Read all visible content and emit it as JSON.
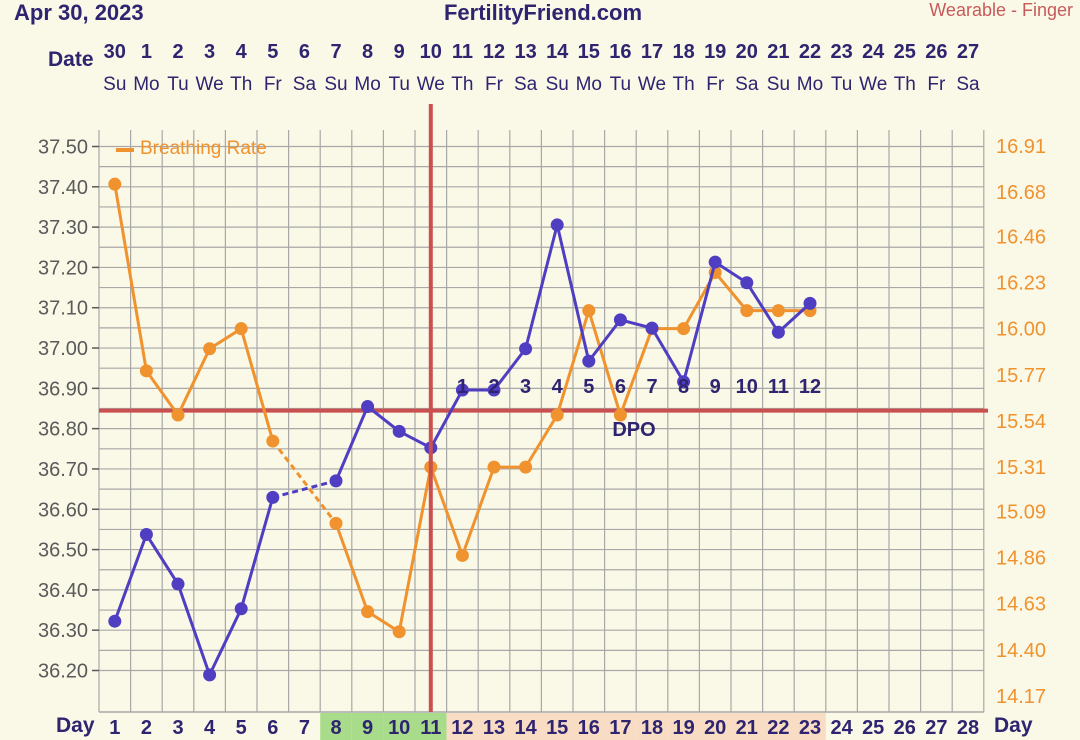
{
  "header": {
    "date": "Apr 30, 2023",
    "site": "FertilityFriend.com",
    "source": "Wearable - Finger"
  },
  "labels": {
    "date_row": "Date",
    "day_row": "Day",
    "dpo": "DPO"
  },
  "colors": {
    "background": "#faf8e6",
    "grid": "#a8a8a8",
    "temp_line": "#4f3ec2",
    "breathing_line": "#f0922e",
    "ovulation_line": "#c9504f",
    "left_axis_text": "#5a5a5a",
    "header_text": "#2e2470",
    "source_text": "#c75a5a",
    "fertile_green": "#a9dc8a",
    "luteal_peach": "#f8dcc4"
  },
  "chart_data": {
    "type": "line",
    "title": "",
    "x": [
      1,
      2,
      3,
      4,
      5,
      6,
      7,
      8,
      9,
      10,
      11,
      12,
      13,
      14,
      15,
      16,
      17,
      18,
      19,
      20,
      21,
      22,
      23,
      24,
      25,
      26,
      27,
      28
    ],
    "dates": [
      "30",
      "1",
      "2",
      "3",
      "4",
      "5",
      "6",
      "7",
      "8",
      "9",
      "10",
      "11",
      "12",
      "13",
      "14",
      "15",
      "16",
      "17",
      "18",
      "19",
      "20",
      "21",
      "22",
      "23",
      "24",
      "25",
      "26",
      "27"
    ],
    "weekdays": [
      "Su",
      "Mo",
      "Tu",
      "We",
      "Th",
      "Fr",
      "Sa",
      "Su",
      "Mo",
      "Tu",
      "We",
      "Th",
      "Fr",
      "Sa",
      "Su",
      "Mo",
      "Tu",
      "We",
      "Th",
      "Fr",
      "Sa",
      "Su",
      "Mo",
      "Tu",
      "We",
      "Th",
      "Fr",
      "Sa"
    ],
    "day_highlight": [
      "none",
      "none",
      "none",
      "none",
      "none",
      "none",
      "none",
      "green",
      "green",
      "green",
      "green",
      "peach",
      "peach",
      "peach",
      "peach",
      "peach",
      "peach",
      "peach",
      "peach",
      "peach",
      "peach",
      "peach",
      "peach",
      "none",
      "none",
      "none",
      "none",
      "none"
    ],
    "y_left_ticks": [
      "37.50",
      "37.40",
      "37.30",
      "37.20",
      "37.10",
      "37.00",
      "36.90",
      "36.80",
      "36.70",
      "36.60",
      "36.50",
      "36.40",
      "36.30",
      "36.20"
    ],
    "ylim_left": [
      36.13,
      37.54
    ],
    "y_right_ticks": [
      "16.91",
      "16.68",
      "16.46",
      "16.23",
      "16.00",
      "15.77",
      "15.54",
      "15.31",
      "15.09",
      "14.86",
      "14.63",
      "14.40",
      "14.17"
    ],
    "ylim_right": [
      14.09,
      16.99
    ],
    "series": [
      {
        "name": "Temperature",
        "axis": "left",
        "points": [
          {
            "day": 1,
            "value": 36.35
          },
          {
            "day": 2,
            "value": 36.56
          },
          {
            "day": 3,
            "value": 36.44
          },
          {
            "day": 4,
            "value": 36.22
          },
          {
            "day": 5,
            "value": 36.38
          },
          {
            "day": 6,
            "value": 36.65
          },
          {
            "day": 8,
            "value": 36.69
          },
          {
            "day": 9,
            "value": 36.87
          },
          {
            "day": 10,
            "value": 36.81
          },
          {
            "day": 11,
            "value": 36.77
          },
          {
            "day": 12,
            "value": 36.91
          },
          {
            "day": 13,
            "value": 36.91
          },
          {
            "day": 14,
            "value": 37.01
          },
          {
            "day": 15,
            "value": 37.31
          },
          {
            "day": 16,
            "value": 36.98
          },
          {
            "day": 17,
            "value": 37.08
          },
          {
            "day": 18,
            "value": 37.06
          },
          {
            "day": 19,
            "value": 36.93
          },
          {
            "day": 20,
            "value": 37.22
          },
          {
            "day": 21,
            "value": 37.17
          },
          {
            "day": 22,
            "value": 37.05
          },
          {
            "day": 23,
            "value": 37.12
          }
        ]
      },
      {
        "name": "Breathing Rate",
        "axis": "right",
        "points": [
          {
            "day": 1,
            "value": 16.72
          },
          {
            "day": 2,
            "value": 15.79
          },
          {
            "day": 3,
            "value": 15.57
          },
          {
            "day": 4,
            "value": 15.9
          },
          {
            "day": 5,
            "value": 16.0
          },
          {
            "day": 6,
            "value": 15.44
          },
          {
            "day": 8,
            "value": 15.03
          },
          {
            "day": 9,
            "value": 14.59
          },
          {
            "day": 10,
            "value": 14.49
          },
          {
            "day": 11,
            "value": 15.31
          },
          {
            "day": 12,
            "value": 14.87
          },
          {
            "day": 13,
            "value": 15.31
          },
          {
            "day": 14,
            "value": 15.31
          },
          {
            "day": 15,
            "value": 15.57
          },
          {
            "day": 16,
            "value": 16.09
          },
          {
            "day": 17,
            "value": 15.57
          },
          {
            "day": 18,
            "value": 16.0
          },
          {
            "day": 19,
            "value": 16.0
          },
          {
            "day": 20,
            "value": 16.28
          },
          {
            "day": 21,
            "value": 16.09
          },
          {
            "day": 22,
            "value": 16.09
          },
          {
            "day": 23,
            "value": 16.09
          }
        ]
      }
    ],
    "legend": {
      "label": "Breathing Rate",
      "placement": "top-left"
    },
    "coverline_value": 36.86,
    "ovulation_day": 11,
    "dpo_labels": [
      {
        "day": 12,
        "label": "1"
      },
      {
        "day": 13,
        "label": "2"
      },
      {
        "day": 14,
        "label": "3"
      },
      {
        "day": 15,
        "label": "4"
      },
      {
        "day": 16,
        "label": "5"
      },
      {
        "day": 17,
        "label": "6"
      },
      {
        "day": 18,
        "label": "7"
      },
      {
        "day": 19,
        "label": "8"
      },
      {
        "day": 20,
        "label": "9"
      },
      {
        "day": 21,
        "label": "10"
      },
      {
        "day": 22,
        "label": "11"
      },
      {
        "day": 23,
        "label": "12"
      }
    ]
  }
}
